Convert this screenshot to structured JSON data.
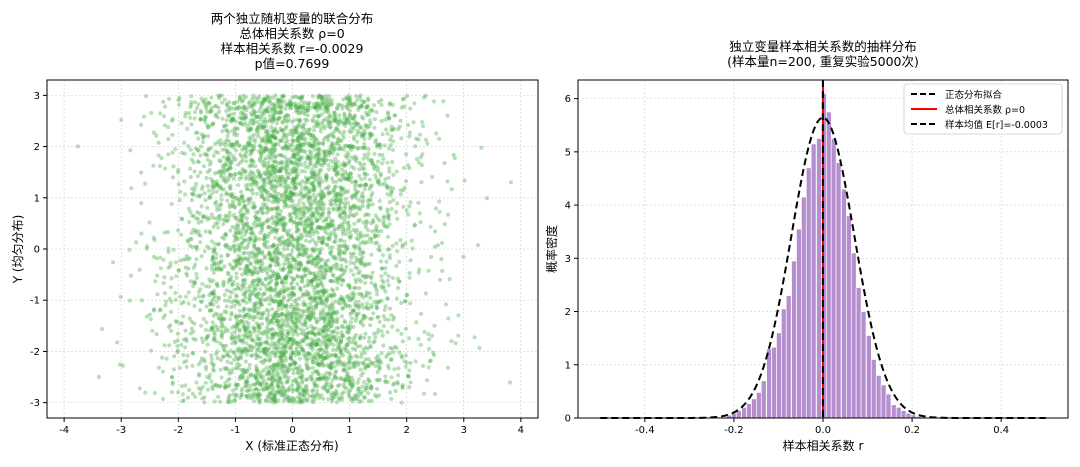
{
  "chart_data": [
    {
      "type": "scatter",
      "title_lines": [
        "两个独立随机变量的联合分布",
        "总体相关系数 ρ=0",
        "样本相关系数 r=-0.0029",
        "p值=0.7699"
      ],
      "xlabel": "X (标准正态分布)",
      "ylabel": "Y (均匀分布)",
      "xlim": [
        -4.3,
        4.3
      ],
      "ylim": [
        -3.3,
        3.3
      ],
      "xticks": [
        -4,
        -3,
        -2,
        -1,
        0,
        1,
        2,
        3,
        4
      ],
      "yticks": [
        -3,
        -2,
        -1,
        0,
        1,
        2,
        3
      ],
      "x_distribution": "normal(0,1)",
      "y_distribution": "uniform(-3,3)",
      "n_points": 5000,
      "point_color": "#4daf4a",
      "grid": true
    },
    {
      "type": "bar",
      "title_lines": [
        "独立变量样本相关系数的抽样分布",
        "(样本量n=200, 重复实验5000次)"
      ],
      "xlabel": "样本相关系数 r",
      "ylabel": "概率密度",
      "xlim": [
        -0.55,
        0.55
      ],
      "ylim": [
        0,
        6.35
      ],
      "xticks": [
        -0.4,
        -0.2,
        0.0,
        0.2,
        0.4
      ],
      "yticks": [
        0,
        1,
        2,
        3,
        4,
        5,
        6
      ],
      "bin_width": 0.0112,
      "bins": [
        {
          "x": -0.211,
          "y": 0.05
        },
        {
          "x": -0.2,
          "y": 0.09
        },
        {
          "x": -0.189,
          "y": 0.14
        },
        {
          "x": -0.177,
          "y": 0.2
        },
        {
          "x": -0.166,
          "y": 0.27
        },
        {
          "x": -0.155,
          "y": 0.36
        },
        {
          "x": -0.144,
          "y": 0.48
        },
        {
          "x": -0.133,
          "y": 0.7
        },
        {
          "x": -0.121,
          "y": 1.3
        },
        {
          "x": -0.11,
          "y": 1.33
        },
        {
          "x": -0.099,
          "y": 1.6
        },
        {
          "x": -0.088,
          "y": 2.05
        },
        {
          "x": -0.077,
          "y": 2.3
        },
        {
          "x": -0.065,
          "y": 2.95
        },
        {
          "x": -0.054,
          "y": 3.55
        },
        {
          "x": -0.043,
          "y": 4.15
        },
        {
          "x": -0.032,
          "y": 4.7
        },
        {
          "x": -0.021,
          "y": 5.15
        },
        {
          "x": -0.009,
          "y": 5.25
        },
        {
          "x": 0.002,
          "y": 6.1
        },
        {
          "x": 0.013,
          "y": 5.75
        },
        {
          "x": 0.024,
          "y": 5.25
        },
        {
          "x": 0.035,
          "y": 4.8
        },
        {
          "x": 0.047,
          "y": 4.3
        },
        {
          "x": 0.058,
          "y": 3.8
        },
        {
          "x": 0.069,
          "y": 3.1
        },
        {
          "x": 0.08,
          "y": 2.45
        },
        {
          "x": 0.091,
          "y": 2.0
        },
        {
          "x": 0.103,
          "y": 1.55
        },
        {
          "x": 0.114,
          "y": 1.1
        },
        {
          "x": 0.125,
          "y": 0.8
        },
        {
          "x": 0.136,
          "y": 0.62
        },
        {
          "x": 0.147,
          "y": 0.45
        },
        {
          "x": 0.159,
          "y": 0.25
        },
        {
          "x": 0.17,
          "y": 0.2
        },
        {
          "x": 0.181,
          "y": 0.14
        },
        {
          "x": 0.192,
          "y": 0.09
        },
        {
          "x": 0.203,
          "y": 0.06
        },
        {
          "x": 0.215,
          "y": 0.03
        }
      ],
      "bar_color": "#b58ecf",
      "normal_fit": {
        "label": "正态分布拟合",
        "mean": -0.0003,
        "sd": 0.0707,
        "x_range": [
          -0.5,
          0.5
        ],
        "color": "#000000",
        "style": "dashed"
      },
      "vlines": [
        {
          "label": "总体相关系数 ρ=0",
          "x": 0.0,
          "color": "#ff0000",
          "style": "solid"
        },
        {
          "label": "样本均值 E[r]=-0.0003",
          "x": -0.0003,
          "color": "#000000",
          "style": "dashed"
        }
      ],
      "legend": [
        "正态分布拟合",
        "总体相关系数 ρ=0",
        "样本均值 E[r]=-0.0003"
      ],
      "legend_position": "top-right",
      "grid": true
    }
  ]
}
